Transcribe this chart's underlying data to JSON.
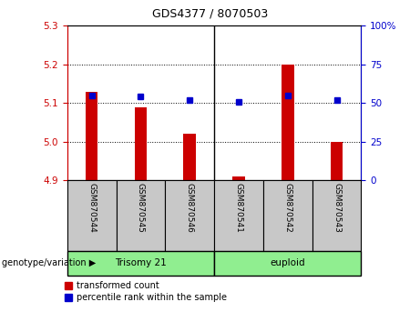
{
  "title": "GDS4377 / 8070503",
  "samples": [
    "GSM870544",
    "GSM870545",
    "GSM870546",
    "GSM870541",
    "GSM870542",
    "GSM870543"
  ],
  "red_values": [
    5.13,
    5.09,
    5.02,
    4.91,
    5.2,
    5.0
  ],
  "blue_values": [
    55,
    54,
    52,
    51,
    55,
    52
  ],
  "ylim_left": [
    4.9,
    5.3
  ],
  "ylim_right": [
    0,
    100
  ],
  "yticks_left": [
    4.9,
    5.0,
    5.1,
    5.2,
    5.3
  ],
  "yticks_right": [
    0,
    25,
    50,
    75,
    100
  ],
  "bar_bottom": 4.9,
  "red_color": "#cc0000",
  "blue_color": "#0000cc",
  "bg_plot": "#ffffff",
  "legend_red_label": "transformed count",
  "legend_blue_label": "percentile rank within the sample",
  "genotype_label": "genotype/variation",
  "trisomy_label": "Trisomy 21",
  "euploid_label": "euploid",
  "green_color": "#90ee90",
  "gray_color": "#c8c8c8",
  "title_fontsize": 9,
  "tick_fontsize": 7.5,
  "label_fontsize": 7.5,
  "sample_fontsize": 6.5,
  "legend_fontsize": 7
}
